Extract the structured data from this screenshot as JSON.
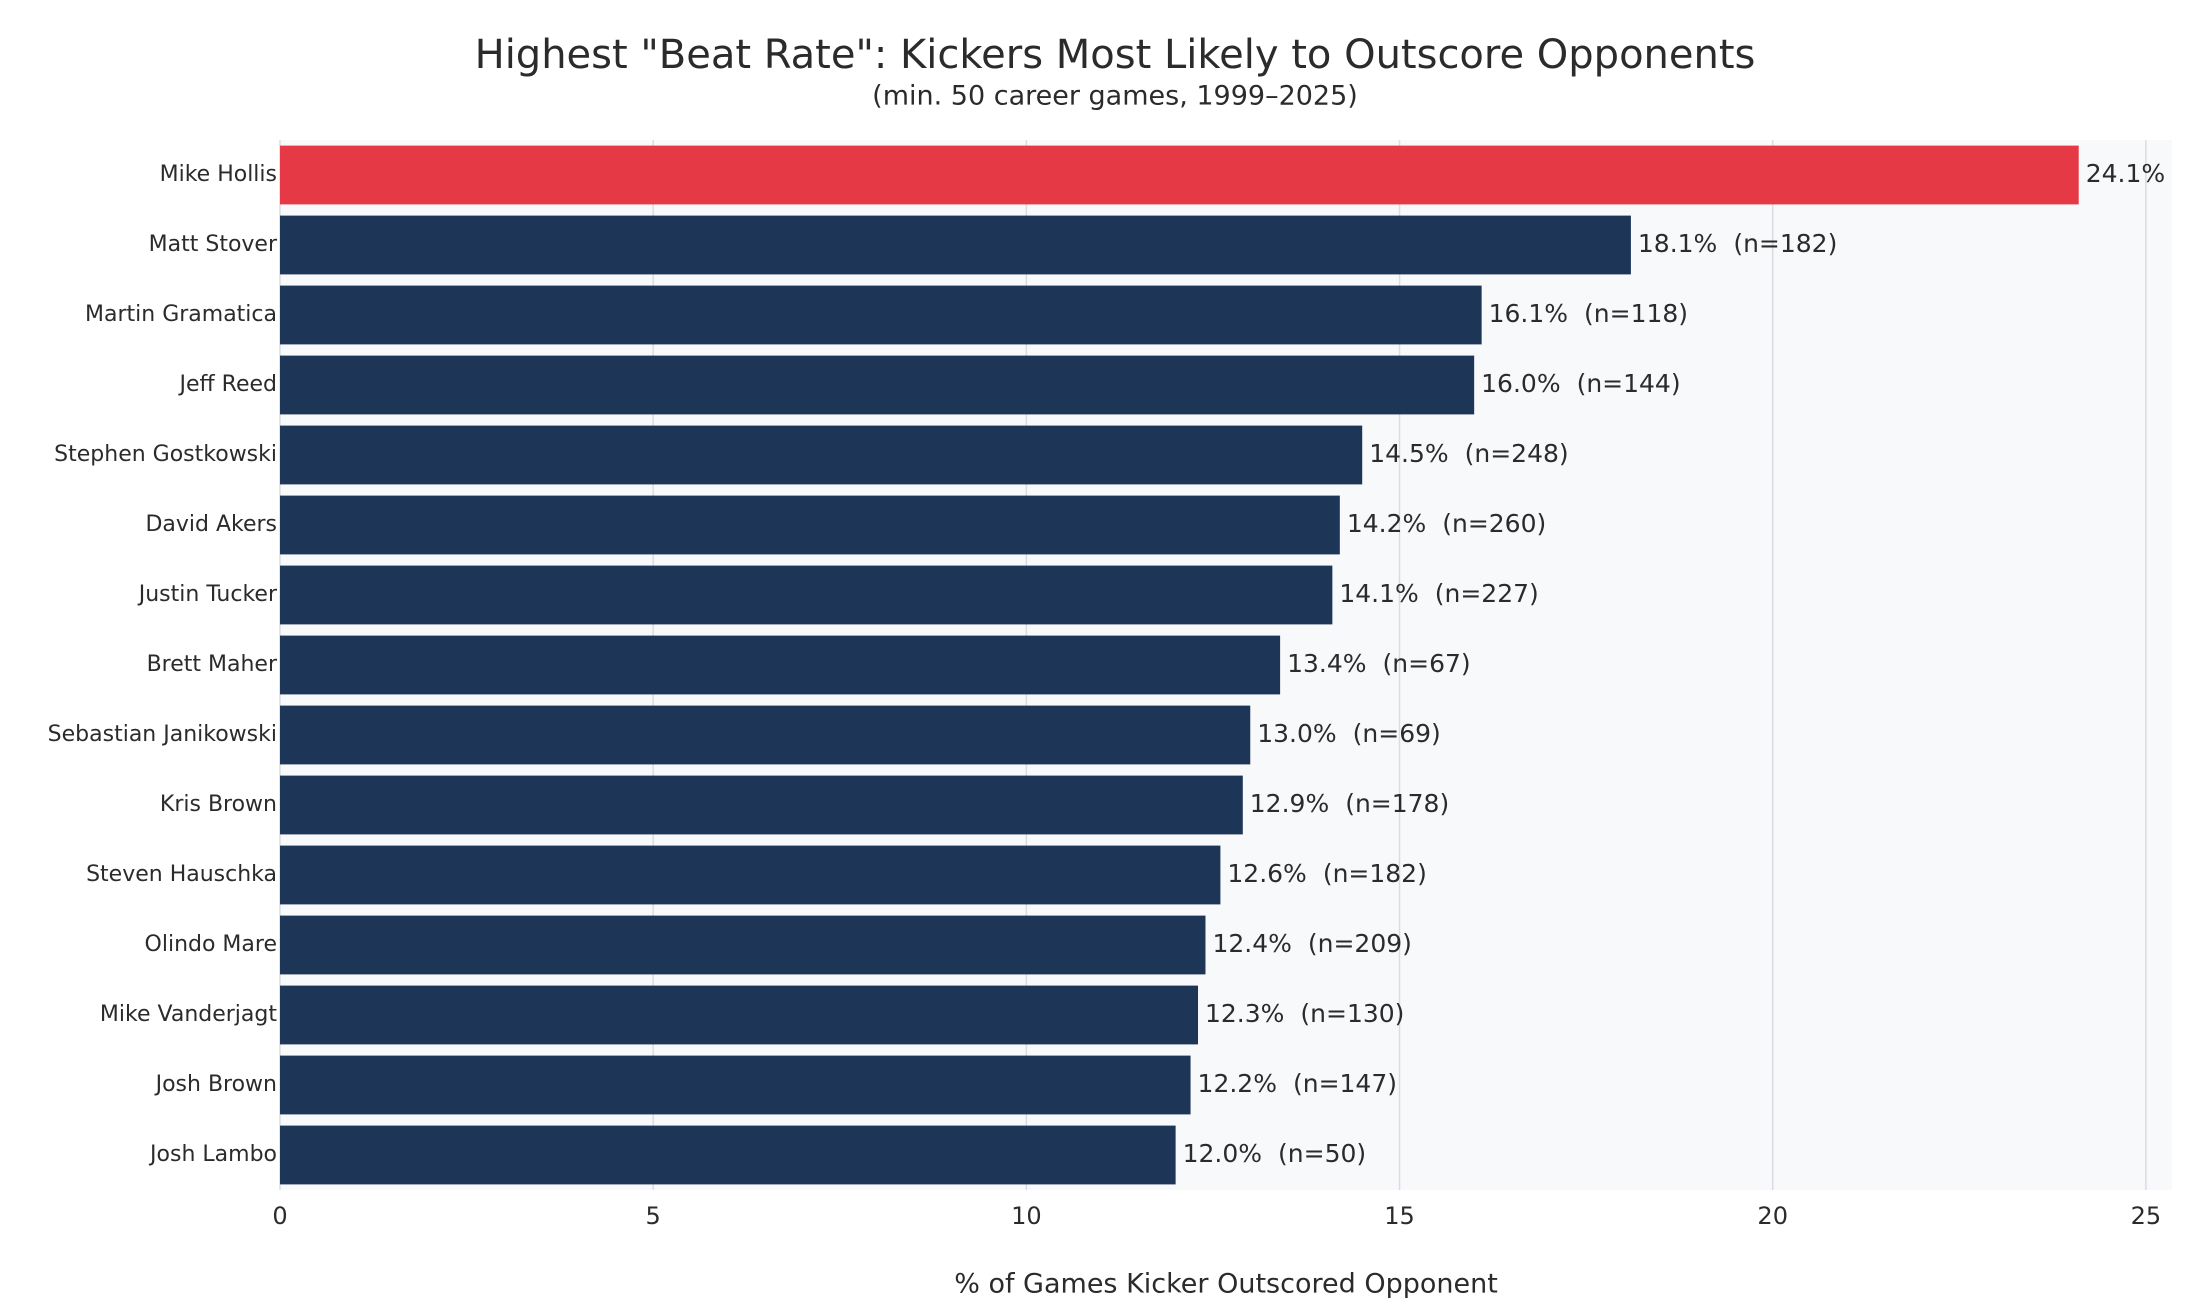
{
  "chart_data": {
    "type": "barh",
    "title": "Highest \"Beat Rate\": Kickers Most Likely to Outscore Opponents",
    "subtitle": "(min. 50 career games, 1999–2025)",
    "x_label": "% of Games Kicker Outscored Opponent",
    "categories": [
      "Mike Hollis",
      "Matt Stover",
      "Martin Gramatica",
      "Jeff Reed",
      "Stephen Gostkowski",
      "David Akers",
      "Justin Tucker",
      "Brett Maher",
      "Sebastian Janikowski",
      "Kris Brown",
      "Steven Hauschka",
      "Olindo Mare",
      "Mike Vanderjagt",
      "Josh Brown",
      "Josh Lambo"
    ],
    "values": [
      24.1,
      18.1,
      16.1,
      16.0,
      14.5,
      14.2,
      14.1,
      13.4,
      13.0,
      12.9,
      12.6,
      12.4,
      12.3,
      12.2,
      12.0
    ],
    "value_labels": [
      "24.1%",
      "18.1%",
      "16.1%",
      "16.0%",
      "14.5%",
      "14.2%",
      "14.1%",
      "13.4%",
      "13.0%",
      "12.9%",
      "12.6%",
      "12.4%",
      "12.3%",
      "12.2%",
      "12.0%"
    ],
    "sample_labels": [
      null,
      "(n=182)",
      "(n=118)",
      "(n=144)",
      "(n=248)",
      "(n=260)",
      "(n=227)",
      "(n=67)",
      "(n=69)",
      "(n=178)",
      "(n=182)",
      "(n=209)",
      "(n=130)",
      "(n=147)",
      "(n=50)"
    ],
    "colors": [
      "#e63946",
      "#1d3557",
      "#1d3557",
      "#1d3557",
      "#1d3557",
      "#1d3557",
      "#1d3557",
      "#1d3557",
      "#1d3557",
      "#1d3557",
      "#1d3557",
      "#1d3557",
      "#1d3557",
      "#1d3557",
      "#1d3557"
    ],
    "xlim": [
      0,
      25.35
    ],
    "xticks": [
      0,
      5,
      10,
      15,
      20,
      25
    ],
    "grid": true
  }
}
